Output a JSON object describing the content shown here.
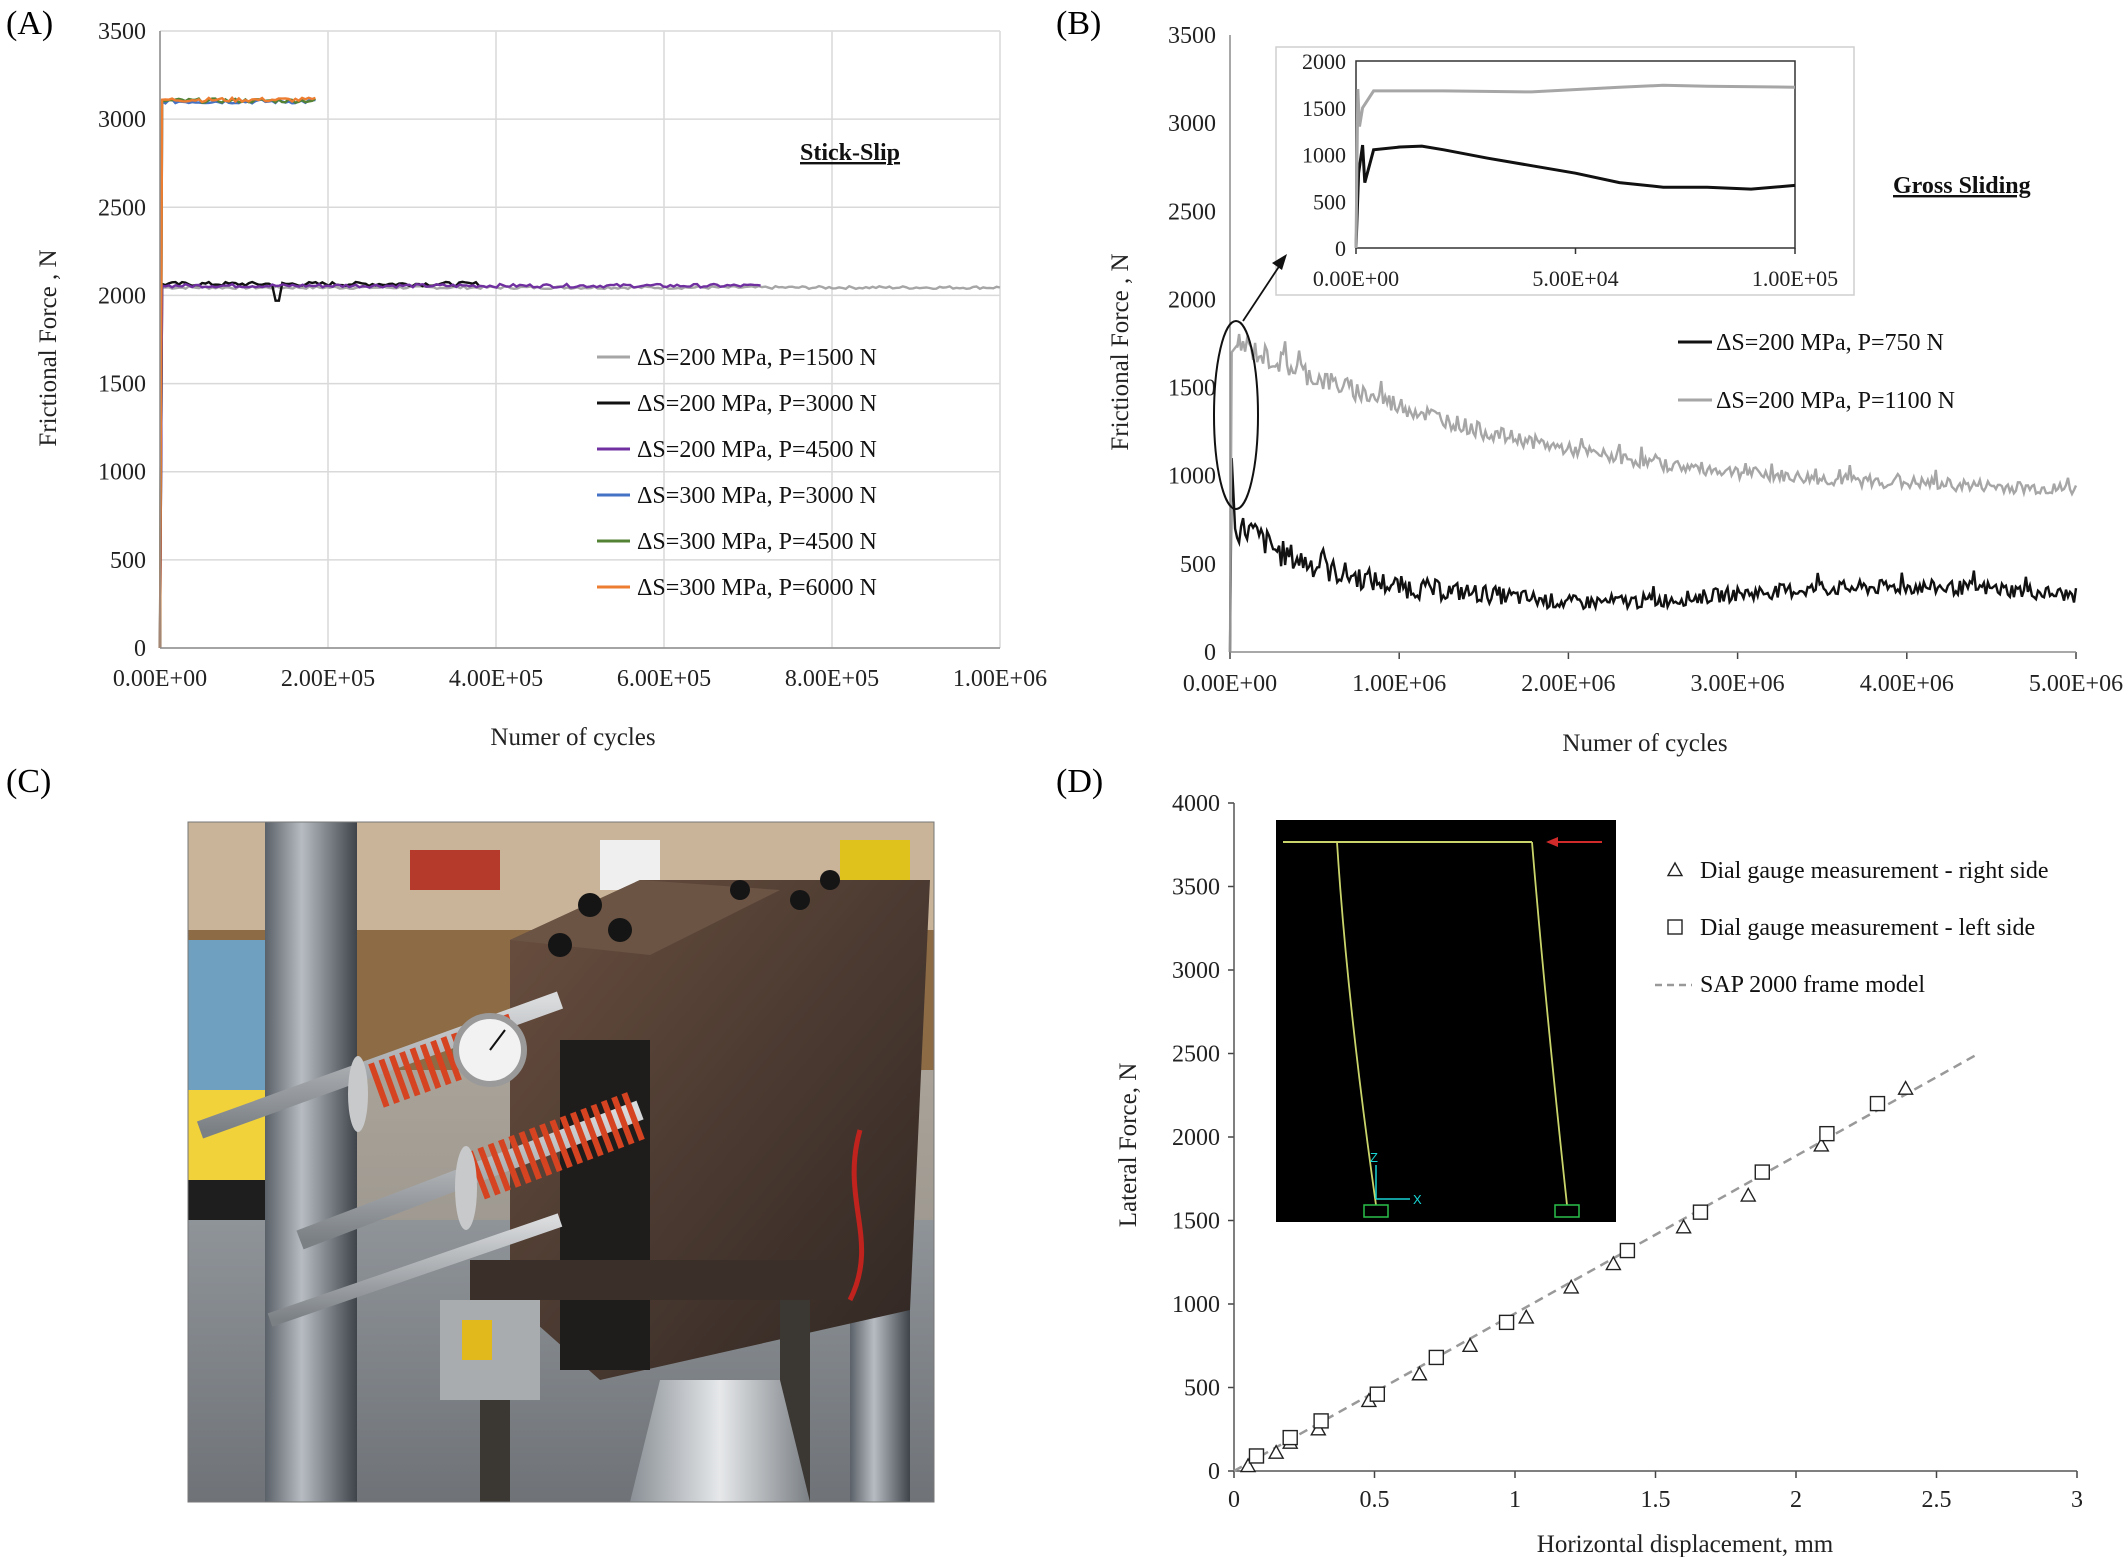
{
  "panels": {
    "A": "(A)",
    "B": "(B)",
    "C": "(C)",
    "D": "(D)"
  },
  "chart_data": [
    {
      "id": "A",
      "type": "line",
      "title": "",
      "xlabel": "Numer of cycles",
      "ylabel": "Frictional Force , N",
      "xlim": [
        0,
        1000000
      ],
      "ylim": [
        0,
        3500
      ],
      "xticks": [
        "0.00E+00",
        "2.00E+05",
        "4.00E+05",
        "6.00E+05",
        "8.00E+05",
        "1.00E+06"
      ],
      "yticks": [
        "0",
        "500",
        "1000",
        "1500",
        "2000",
        "2500",
        "3000",
        "3500"
      ],
      "grid": true,
      "legend_position": "lower-right",
      "annotation": "Stick-Slip",
      "series": [
        {
          "name": "ΔS=200 MPa, P=1500 N",
          "color": "#a6a6a6",
          "level": 2045,
          "x_end": 1000000,
          "noise": 8
        },
        {
          "name": "ΔS=200 MPa, P=3000 N",
          "color": "#111111",
          "level": 2065,
          "x_end": 380000,
          "noise": 12,
          "dip": {
            "x": 140000,
            "y": 1970
          }
        },
        {
          "name": "ΔS=200 MPa, P=4500 N",
          "color": "#7030a0",
          "level": 2055,
          "x_end": 715000,
          "noise": 10
        },
        {
          "name": "ΔS=300 MPa, P=3000 N",
          "color": "#4472c4",
          "level": 3100,
          "x_end": 185000,
          "noise": 12
        },
        {
          "name": "ΔS=300 MPa, P=4500 N",
          "color": "#548235",
          "level": 3105,
          "x_end": 185000,
          "noise": 12
        },
        {
          "name": "ΔS=300 MPa, P=6000 N",
          "color": "#ed7d31",
          "level": 3110,
          "x_end": 185000,
          "noise": 12
        }
      ]
    },
    {
      "id": "B",
      "type": "line",
      "title": "",
      "xlabel": "Numer of cycles",
      "ylabel": "Frictional Force , N",
      "xlim": [
        0,
        5000000
      ],
      "ylim": [
        0,
        3500
      ],
      "xticks": [
        "0.00E+00",
        "1.00E+06",
        "2.00E+06",
        "3.00E+06",
        "4.00E+06",
        "5.00E+06"
      ],
      "yticks": [
        "0",
        "500",
        "1000",
        "1500",
        "2000",
        "2500",
        "3000",
        "3500"
      ],
      "grid": false,
      "legend_position": "center-right",
      "annotation": "Gross Sliding",
      "series": [
        {
          "name": "ΔS=200 MPa, P=750 N",
          "color": "#111111",
          "points": [
            [
              0,
              0
            ],
            [
              10000,
              1100
            ],
            [
              30000,
              700
            ],
            [
              100000,
              700
            ],
            [
              300000,
              560
            ],
            [
              600000,
              460
            ],
            [
              1000000,
              370
            ],
            [
              1500000,
              330
            ],
            [
              2000000,
              280
            ],
            [
              2500000,
              290
            ],
            [
              3000000,
              330
            ],
            [
              3500000,
              360
            ],
            [
              4000000,
              370
            ],
            [
              4500000,
              360
            ],
            [
              5000000,
              320
            ]
          ]
        },
        {
          "name": "ΔS=200 MPa, P=1100 N",
          "color": "#a6a6a6",
          "points": [
            [
              0,
              0
            ],
            [
              10000,
              1700
            ],
            [
              50000,
              1750
            ],
            [
              200000,
              1680
            ],
            [
              500000,
              1560
            ],
            [
              1000000,
              1400
            ],
            [
              1500000,
              1250
            ],
            [
              2000000,
              1150
            ],
            [
              2500000,
              1070
            ],
            [
              3000000,
              1020
            ],
            [
              3500000,
              980
            ],
            [
              4000000,
              960
            ],
            [
              4500000,
              940
            ],
            [
              5000000,
              920
            ]
          ]
        }
      ],
      "inset": {
        "xlim": [
          0,
          100000
        ],
        "ylim": [
          0,
          2000
        ],
        "xticks": [
          "0.00E+00",
          "5.00E+04",
          "1.00E+05"
        ],
        "yticks": [
          "0",
          "500",
          "1000",
          "1500",
          "2000"
        ],
        "series": [
          {
            "color": "#111111",
            "points": [
              [
                0,
                0
              ],
              [
                600,
                800
              ],
              [
                1500,
                1100
              ],
              [
                2000,
                700
              ],
              [
                4000,
                1050
              ],
              [
                10000,
                1080
              ],
              [
                15000,
                1090
              ],
              [
                20000,
                1050
              ],
              [
                30000,
                960
              ],
              [
                40000,
                880
              ],
              [
                50000,
                800
              ],
              [
                60000,
                700
              ],
              [
                70000,
                650
              ],
              [
                80000,
                650
              ],
              [
                90000,
                630
              ],
              [
                100000,
                670
              ]
            ]
          },
          {
            "color": "#a6a6a6",
            "points": [
              [
                0,
                0
              ],
              [
                400,
                1700
              ],
              [
                800,
                1300
              ],
              [
                1500,
                1500
              ],
              [
                4000,
                1680
              ],
              [
                20000,
                1680
              ],
              [
                40000,
                1670
              ],
              [
                60000,
                1720
              ],
              [
                70000,
                1740
              ],
              [
                80000,
                1730
              ],
              [
                100000,
                1720
              ]
            ]
          }
        ]
      }
    },
    {
      "id": "D",
      "type": "scatter",
      "title": "",
      "xlabel": "Horizontal displacement, mm",
      "ylabel": "Lateral Force, N",
      "xlim": [
        0,
        3
      ],
      "ylim": [
        0,
        4000
      ],
      "xticks": [
        "0",
        "0.5",
        "1",
        "1.5",
        "2",
        "2.5",
        "3"
      ],
      "yticks": [
        "0",
        "500",
        "1000",
        "1500",
        "2000",
        "2500",
        "3000",
        "3500",
        "4000"
      ],
      "grid": false,
      "legend_position": "top-right",
      "series": [
        {
          "name": "Dial gauge measurement - right side",
          "marker": "triangle",
          "points": [
            [
              0.05,
              30
            ],
            [
              0.15,
              110
            ],
            [
              0.2,
              170
            ],
            [
              0.3,
              250
            ],
            [
              0.48,
              420
            ],
            [
              0.66,
              580
            ],
            [
              0.84,
              750
            ],
            [
              1.04,
              920
            ],
            [
              1.2,
              1100
            ],
            [
              1.35,
              1240
            ],
            [
              1.6,
              1460
            ],
            [
              1.83,
              1650
            ],
            [
              2.09,
              1950
            ],
            [
              2.39,
              2290
            ]
          ]
        },
        {
          "name": "Dial gauge measurement - left side",
          "marker": "square",
          "points": [
            [
              0.08,
              90
            ],
            [
              0.2,
              200
            ],
            [
              0.31,
              300
            ],
            [
              0.51,
              460
            ],
            [
              0.72,
              680
            ],
            [
              0.97,
              890
            ],
            [
              1.4,
              1320
            ],
            [
              1.66,
              1550
            ],
            [
              1.88,
              1790
            ],
            [
              2.11,
              2020
            ],
            [
              2.29,
              2200
            ]
          ]
        },
        {
          "name": "SAP 2000 frame model",
          "style": "dashed",
          "color": "#999999",
          "points": [
            [
              0,
              0
            ],
            [
              2.65,
              2500
            ]
          ]
        }
      ]
    }
  ],
  "inset_model": {
    "axis_z": "Z",
    "axis_x": "X"
  },
  "photo": {
    "description_none": ""
  }
}
